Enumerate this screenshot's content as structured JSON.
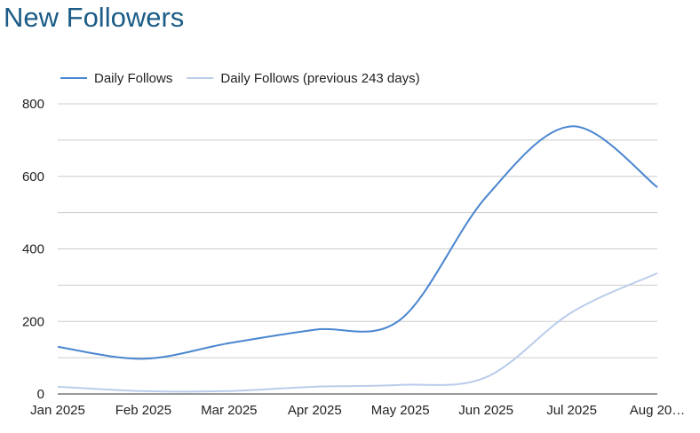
{
  "title": "New Followers",
  "chart_data": {
    "type": "line",
    "title": "New Followers",
    "xlabel": "",
    "ylabel": "",
    "categories": [
      "Jan 2025",
      "Feb 2025",
      "Mar 2025",
      "Apr 2025",
      "May 2025",
      "Jun 2025",
      "Jul 2025",
      "Aug 20…"
    ],
    "ylim": [
      0,
      800
    ],
    "yticks": [
      0,
      200,
      400,
      600,
      800
    ],
    "grid": true,
    "legend_position": "top-left",
    "series": [
      {
        "name": "Daily Follows",
        "color": "#4a86d0",
        "values": [
          130,
          97,
          140,
          177,
          205,
          543,
          738,
          570
        ]
      },
      {
        "name": "Daily Follows (previous 243 days)",
        "color": "#b9cdea",
        "values": [
          20,
          8,
          8,
          20,
          25,
          46,
          225,
          333
        ]
      }
    ]
  }
}
